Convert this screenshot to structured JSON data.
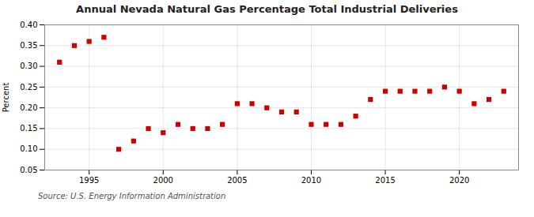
{
  "chart_data": {
    "type": "scatter",
    "title": "Annual Nevada Natural Gas Percentage Total Industrial Deliveries",
    "ylabel": "Percent",
    "annotations": [
      "Source: U.S. Energy Information Administration"
    ],
    "x": [
      1993,
      1994,
      1995,
      1996,
      1997,
      1998,
      1999,
      2000,
      2001,
      2002,
      2003,
      2004,
      2005,
      2006,
      2007,
      2008,
      2009,
      2010,
      2011,
      2012,
      2013,
      2014,
      2015,
      2016,
      2017,
      2018,
      2019,
      2020,
      2021,
      2022,
      2023
    ],
    "values": [
      0.31,
      0.35,
      0.36,
      0.37,
      0.1,
      0.12,
      0.15,
      0.14,
      0.16,
      0.15,
      0.15,
      0.16,
      0.21,
      0.21,
      0.2,
      0.19,
      0.19,
      0.16,
      0.16,
      0.16,
      0.18,
      0.22,
      0.24,
      0.24,
      0.24,
      0.24,
      0.25,
      0.24,
      0.21,
      0.22,
      0.24
    ],
    "xlim": [
      1992,
      2024
    ],
    "xticks": [
      1995,
      2000,
      2005,
      2010,
      2015,
      2020
    ],
    "ylim": [
      0.05,
      0.4
    ],
    "yticks": [
      0.05,
      {
        "value": 0.1,
        "label": "0.10"
      },
      0.15,
      {
        "value": 0.2,
        "label": "0.20"
      },
      0.25,
      {
        "value": 0.3,
        "label": "0.30"
      },
      0.35,
      {
        "value": 0.4,
        "label": "0.40"
      }
    ],
    "color": "#cc0000",
    "marker": "square",
    "grid": true
  }
}
